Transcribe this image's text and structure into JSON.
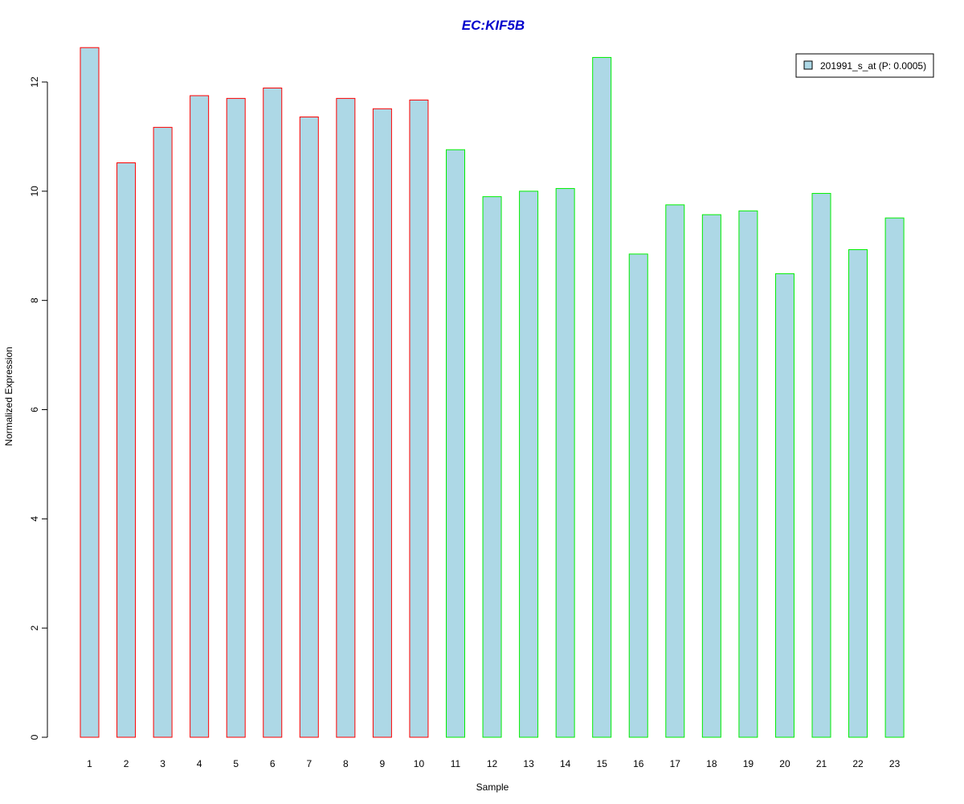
{
  "chart_data": {
    "type": "bar",
    "title": "EC:KIF5B",
    "xlabel": "Sample",
    "ylabel": "Normalized Expression",
    "categories": [
      "1",
      "2",
      "3",
      "4",
      "5",
      "6",
      "7",
      "8",
      "9",
      "10",
      "11",
      "12",
      "13",
      "14",
      "15",
      "16",
      "17",
      "18",
      "19",
      "20",
      "21",
      "22",
      "23"
    ],
    "values": [
      12.63,
      10.52,
      11.17,
      11.75,
      11.7,
      11.89,
      11.36,
      11.7,
      11.51,
      11.67,
      10.76,
      9.9,
      10.0,
      10.05,
      12.45,
      8.85,
      9.75,
      9.57,
      9.64,
      8.49,
      9.96,
      8.93,
      9.51
    ],
    "groups": [
      "a",
      "a",
      "a",
      "a",
      "a",
      "a",
      "a",
      "a",
      "a",
      "a",
      "b",
      "b",
      "b",
      "b",
      "b",
      "b",
      "b",
      "b",
      "b",
      "b",
      "b",
      "b",
      "b"
    ],
    "group_colors": {
      "a": "#FF0000",
      "b": "#00EE00"
    },
    "bar_fill": "#ADD8E6",
    "title_color": "#0000CC",
    "ylim": [
      0,
      12.6
    ],
    "yticks": [
      0,
      2,
      4,
      6,
      8,
      10,
      12
    ],
    "grid": false,
    "legend": {
      "position": "top-right",
      "entries": [
        {
          "label": "201991_s_at (P: 0.0005)",
          "color": "#ADD8E6"
        }
      ]
    }
  }
}
